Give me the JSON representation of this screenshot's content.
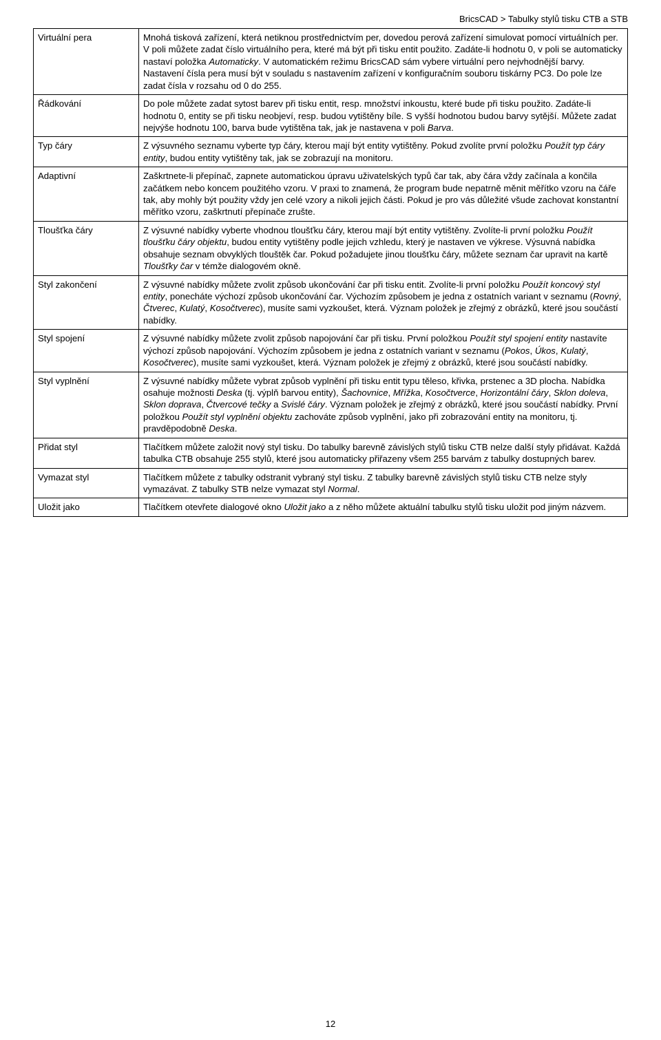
{
  "breadcrumb": "BricsCAD > Tabulky stylů tisku CTB a STB",
  "page_number": "12",
  "rows": [
    {
      "label": "Virtuální pera",
      "desc_before_italic1": "Mnohá tisková zařízení, která netiknou prostřednictvím per, dovedou perová zařízení simulovat pomocí virtuálních per. V poli můžete zadat číslo virtuálního pera, které má být při tisku entit použito. Zadáte-li hodnotu 0, v poli se automaticky nastaví položka ",
      "italic1": "Automaticky",
      "desc_after_italic1": ". V automatickém režimu BricsCAD sám vybere virtuální pero nejvhodnější barvy. Nastavení čísla pera musí být v souladu s nastavením zařízení v konfiguračním souboru tiskárny PC3. Do pole lze zadat čísla v rozsahu od 0 do 255."
    },
    {
      "label": "Řádkování",
      "desc_before_italic1": "Do pole můžete zadat sytost barev při tisku entit, resp. množství inkoustu, které bude při tisku použito. Zadáte-li hodnotu 0, entity se při tisku neobjeví, resp. budou vytištěny bíle. S vyšší hodnotou budou barvy sytější. Můžete zadat nejvýše hodnotu 100, barva bude vytištěna tak, jak je nastavena v poli ",
      "italic1": "Barva",
      "desc_after_italic1": "."
    },
    {
      "label": "Typ čáry",
      "desc_before_italic1": "Z výsuvného seznamu vyberte typ čáry, kterou mají být entity vytištěny. Pokud zvolíte první položku ",
      "italic1": "Použít typ čáry entity",
      "desc_after_italic1": ", budou entity vytištěny tak, jak se zobrazují na monitoru."
    },
    {
      "label": "Adaptivní",
      "desc_before_italic1": "Zaškrtnete-li přepínač, zapnete automatickou úpravu uživatelských typů čar tak, aby čára vždy začínala a končila začátkem nebo koncem použitého vzoru. V praxi to znamená, že program bude nepatrně měnit měřítko vzoru na čáře tak, aby mohly být použity vždy jen celé vzory a nikoli jejich části. Pokud je pro vás důležité všude zachovat konstantní měřítko vzoru, zaškrtnutí přepínače zrušte.",
      "italic1": "",
      "desc_after_italic1": ""
    },
    {
      "label": "Tloušťka čáry",
      "desc_before_italic1": "Z výsuvné nabídky vyberte vhodnou tloušťku čáry, kterou mají být entity vytištěny. Zvolíte-li první položku ",
      "italic1": "Použít tloušťku čáry objektu",
      "desc_mid1": ", budou entity vytištěny podle jejich vzhledu, který je nastaven ve výkrese. Výsuvná nabídka obsahuje seznam obvyklých tlouštěk čar. Pokud požadujete jinou tloušťku čáry, můžete seznam čar upravit na kartě ",
      "italic2": "Tloušťky čar",
      "desc_after_italic2": " v témže dialogovém okně."
    },
    {
      "label": "Styl zakončení",
      "desc_before_italic1": "Z výsuvné nabídky můžete zvolit způsob ukončování čar při tisku entit. Zvolíte-li první položku ",
      "italic1": "Použít koncový styl entity",
      "desc_mid1": ", ponecháte výchozí způsob ukončování čar. Výchozím způsobem je jedna z ostatních variant v seznamu (",
      "italic2": "Rovný",
      "sep1": ", ",
      "italic3": "Čtverec",
      "sep2": ", ",
      "italic4": "Kulatý",
      "sep3": ", ",
      "italic5": "Kosočtverec",
      "desc_after_italic5": "), musíte sami vyzkoušet, která. Význam položek je zřejmý z obrázků, které jsou součástí nabídky."
    },
    {
      "label": "Styl spojení",
      "desc_before_italic1": "Z výsuvné nabídky můžete zvolit způsob napojování čar při tisku. První položkou ",
      "italic1": "Použít styl spojení entity",
      "desc_mid1": " nastavíte výchozí způsob napojování. Výchozím způsobem je jedna z ostatních variant v seznamu (",
      "italic2": "Pokos",
      "sep1": ", ",
      "italic3": "Úkos",
      "sep2": ", ",
      "italic4": "Kulatý",
      "sep3": ", ",
      "italic5": "Kosočtverec",
      "desc_after_italic5": "), musíte sami vyzkoušet, která. Význam položek je zřejmý z obrázků, které jsou součástí nabídky."
    },
    {
      "label": "Styl vyplnění",
      "desc_before_italic1": "Z výsuvné nabídky můžete vybrat způsob vyplnění při tisku entit typu těleso, křivka, prstenec a 3D plocha. Nabídka osahuje možnosti ",
      "italic1": "Deska",
      "desc_mid1": " (tj. výplň barvou entity), ",
      "italic2": "Šachovnice",
      "sep1": ", ",
      "italic3": "Mřížka",
      "sep2": ", ",
      "italic4": "Kosočtverce",
      "sep3": ", ",
      "italic5": "Horizontální čáry",
      "sep4": ", ",
      "italic6": "Sklon doleva",
      "sep5": ", ",
      "italic7": "Sklon doprava",
      "sep6": ", ",
      "italic8": "Čtvercové tečky",
      "sep7": " a ",
      "italic9": "Svislé čáry",
      "desc_mid2": ". Význam položek je zřejmý z obrázků, které jsou součástí nabídky. První položkou ",
      "italic10": "Použít styl vyplnění objektu",
      "desc_mid3": " zachováte způsob vyplnění, jako při zobrazování entity na monitoru, tj. pravděpodobně ",
      "italic11": "Deska",
      "desc_after_italic11": "."
    },
    {
      "label": "Přidat styl",
      "desc_before_italic1": "Tlačítkem můžete založit nový styl tisku. Do tabulky barevně závislých stylů tisku CTB nelze další styly přidávat. Každá tabulka CTB obsahuje 255 stylů, které jsou automaticky přiřazeny všem 255 barvám z tabulky dostupných barev.",
      "italic1": "",
      "desc_after_italic1": ""
    },
    {
      "label": "Vymazat styl",
      "desc_before_italic1": "Tlačítkem můžete z tabulky odstranit vybraný styl tisku. Z tabulky barevně závislých stylů tisku CTB nelze styly vymazávat. Z tabulky STB nelze vymazat styl ",
      "italic1": "Normal",
      "desc_after_italic1": "."
    },
    {
      "label": "Uložit jako",
      "desc_before_italic1": "Tlačítkem otevřete dialogové okno ",
      "italic1": "Uložit jako",
      "desc_after_italic1": " a z něho můžete aktuální tabulku stylů tisku uložit pod jiným názvem."
    }
  ]
}
